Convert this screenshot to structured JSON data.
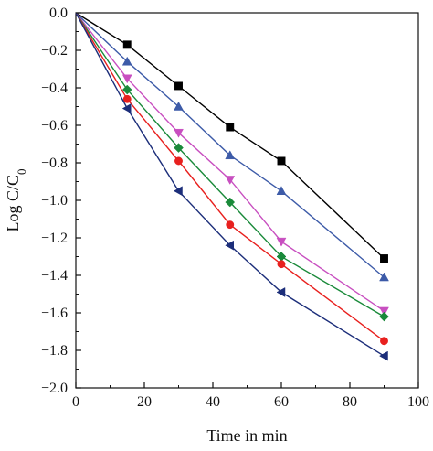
{
  "chart_data": {
    "type": "line",
    "title": "",
    "xlabel": "Time in min",
    "ylabel": {
      "main": "Log C/C",
      "sub": "0"
    },
    "xlim": [
      0,
      100
    ],
    "ylim": [
      -2.0,
      0.0
    ],
    "x_ticks": [
      "0",
      "20",
      "40",
      "60",
      "80",
      "100"
    ],
    "y_ticks": [
      "0.0",
      "−0.2",
      "−0.4",
      "−0.6",
      "−0.8",
      "−1.0",
      "−1.2",
      "−1.4",
      "−1.6",
      "−1.8",
      "−2.0"
    ],
    "grid": false,
    "x": [
      0,
      15,
      30,
      45,
      60,
      90
    ],
    "series": [
      {
        "color": "#000000",
        "marker": "square",
        "values": [
          0,
          -0.17,
          -0.39,
          -0.61,
          -0.79,
          -1.31
        ]
      },
      {
        "color": "#3d5ba8",
        "marker": "triangle-up",
        "values": [
          0,
          -0.26,
          -0.5,
          -0.76,
          -0.95,
          -1.41
        ]
      },
      {
        "color": "#c84fc0",
        "marker": "triangle-down",
        "values": [
          0,
          -0.35,
          -0.64,
          -0.89,
          -1.22,
          -1.59
        ]
      },
      {
        "color": "#1a8a3a",
        "marker": "diamond",
        "values": [
          0,
          -0.41,
          -0.72,
          -1.01,
          -1.3,
          -1.62
        ]
      },
      {
        "color": "#e8201e",
        "marker": "circle",
        "values": [
          0,
          -0.46,
          -0.79,
          -1.13,
          -1.34,
          -1.75
        ]
      },
      {
        "color": "#1c2e7a",
        "marker": "triangle-left",
        "values": [
          0,
          -0.51,
          -0.95,
          -1.24,
          -1.49,
          -1.83
        ]
      }
    ]
  }
}
